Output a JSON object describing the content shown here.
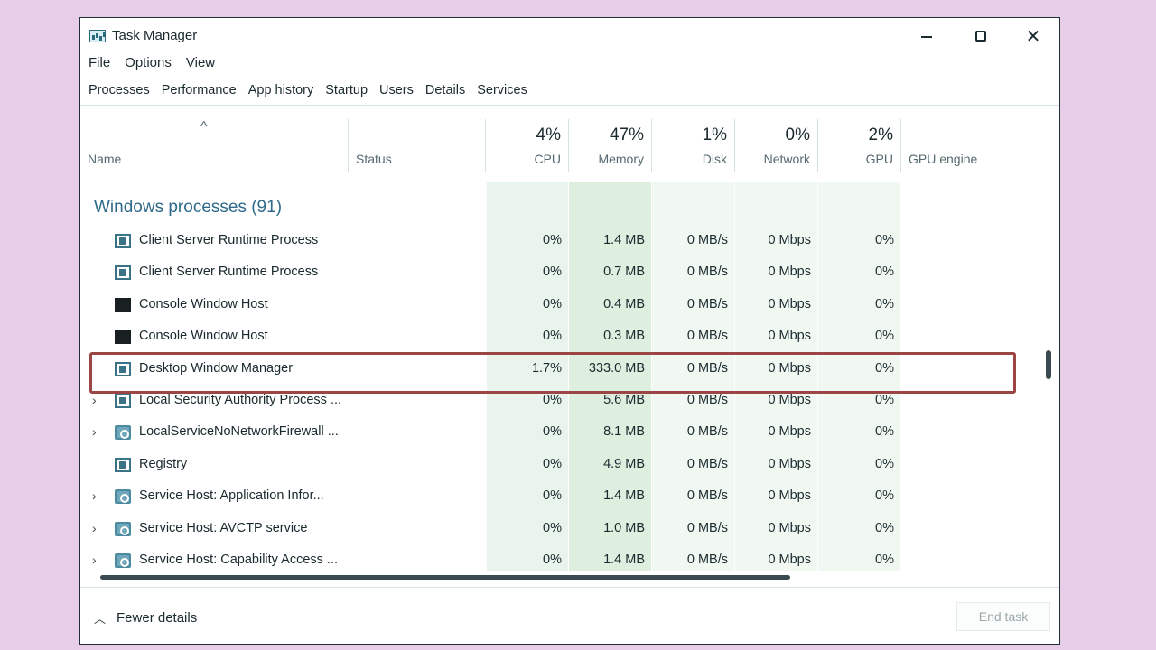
{
  "window": {
    "title": "Task Manager",
    "icons": {
      "app": "task-manager-icon",
      "minimize": "minimize-icon",
      "maximize": "maximize-icon",
      "close": "close-icon"
    },
    "close_glyph": "✕"
  },
  "menu": [
    "File",
    "Options",
    "View"
  ],
  "tabs": [
    "Processes",
    "Performance",
    "App history",
    "Startup",
    "Users",
    "Details",
    "Services"
  ],
  "active_tab": "Processes",
  "columns": {
    "name": "Name",
    "status": "Status",
    "cpu": {
      "pct": "4%",
      "label": "CPU"
    },
    "memory": {
      "pct": "47%",
      "label": "Memory"
    },
    "disk": {
      "pct": "1%",
      "label": "Disk"
    },
    "network": {
      "pct": "0%",
      "label": "Network"
    },
    "gpu": {
      "pct": "2%",
      "label": "GPU"
    },
    "gpu_engine": "GPU engine",
    "sort_glyph": "^"
  },
  "group": {
    "title": "Windows processes (91)"
  },
  "processes": [
    {
      "expandable": false,
      "icon": "app-window-icon",
      "name": "Client Server Runtime Process",
      "cpu": "0%",
      "memory": "1.4 MB",
      "disk": "0 MB/s",
      "network": "0 Mbps",
      "gpu": "0%"
    },
    {
      "expandable": false,
      "icon": "app-window-icon",
      "name": "Client Server Runtime Process",
      "cpu": "0%",
      "memory": "0.7 MB",
      "disk": "0 MB/s",
      "network": "0 Mbps",
      "gpu": "0%"
    },
    {
      "expandable": false,
      "icon": "console-icon",
      "name": "Console Window Host",
      "cpu": "0%",
      "memory": "0.4 MB",
      "disk": "0 MB/s",
      "network": "0 Mbps",
      "gpu": "0%"
    },
    {
      "expandable": false,
      "icon": "console-icon",
      "name": "Console Window Host",
      "cpu": "0%",
      "memory": "0.3 MB",
      "disk": "0 MB/s",
      "network": "0 Mbps",
      "gpu": "0%"
    },
    {
      "expandable": false,
      "icon": "app-window-icon",
      "name": "Desktop Window Manager",
      "cpu": "1.7%",
      "memory": "333.0 MB",
      "disk": "0 MB/s",
      "network": "0 Mbps",
      "gpu": "0%",
      "highlighted": true
    },
    {
      "expandable": true,
      "icon": "app-window-icon",
      "name": "Local Security Authority Process ...",
      "cpu": "0%",
      "memory": "5.6 MB",
      "disk": "0 MB/s",
      "network": "0 Mbps",
      "gpu": "0%"
    },
    {
      "expandable": true,
      "icon": "service-gear-icon",
      "name": "LocalServiceNoNetworkFirewall ...",
      "cpu": "0%",
      "memory": "8.1 MB",
      "disk": "0 MB/s",
      "network": "0 Mbps",
      "gpu": "0%"
    },
    {
      "expandable": false,
      "icon": "app-window-icon",
      "name": "Registry",
      "cpu": "0%",
      "memory": "4.9 MB",
      "disk": "0 MB/s",
      "network": "0 Mbps",
      "gpu": "0%"
    },
    {
      "expandable": true,
      "icon": "service-gear-icon",
      "name": "Service Host: Application Infor...",
      "cpu": "0%",
      "memory": "1.4 MB",
      "disk": "0 MB/s",
      "network": "0 Mbps",
      "gpu": "0%"
    },
    {
      "expandable": true,
      "icon": "service-gear-icon",
      "name": "Service Host: AVCTP service",
      "cpu": "0%",
      "memory": "1.0 MB",
      "disk": "0 MB/s",
      "network": "0 Mbps",
      "gpu": "0%"
    },
    {
      "expandable": true,
      "icon": "service-gear-icon",
      "name": "Service Host: Capability Access ...",
      "cpu": "0%",
      "memory": "1.4 MB",
      "disk": "0 MB/s",
      "network": "0 Mbps",
      "gpu": "0%"
    }
  ],
  "footer": {
    "fewer_details": "Fewer details",
    "end_task": "End task"
  },
  "colors": {
    "highlight_border": "#9b4545",
    "group_title": "#2f6a8a",
    "background": "#e8cde9"
  }
}
